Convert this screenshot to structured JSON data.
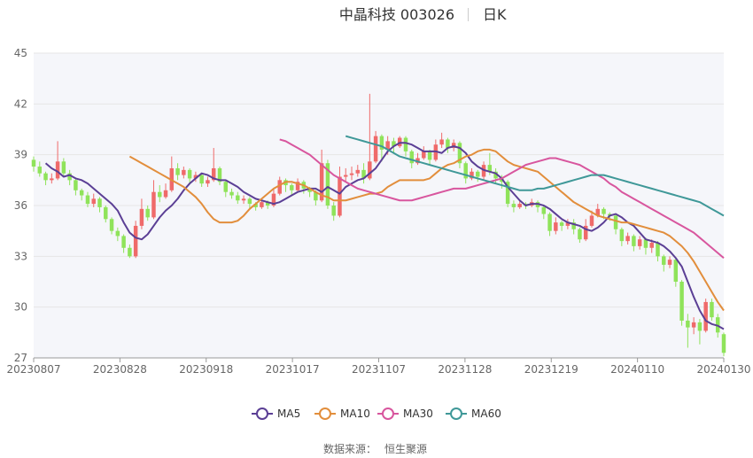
{
  "header": {
    "stock": "中晶科技 003026",
    "period": "日K"
  },
  "source": {
    "label": "数据来源：",
    "value": "恒生聚源"
  },
  "colors": {
    "up": "#ef6a6a",
    "down": "#8fe35a",
    "MA5": "#5b3f95",
    "MA10": "#e28e3c",
    "MA30": "#d8569e",
    "MA60": "#3f9898",
    "grid": "#e6e6e6",
    "plot_bg": "#f5f6fa"
  },
  "chart_data": {
    "type": "candlestick",
    "ylim": [
      27,
      45
    ],
    "y_ticks": [
      "45",
      "42",
      "39",
      "36",
      "33",
      "30",
      "27"
    ],
    "x_ticks": [
      "20230807",
      "20230828",
      "20230918",
      "20231017",
      "20231107",
      "20231128",
      "20231219",
      "20240110",
      "20240130"
    ],
    "grid": true,
    "legend": {
      "placement": "bottom",
      "items": [
        "MA5",
        "MA10",
        "MA30",
        "MA60"
      ]
    },
    "candles": [
      [
        38.7,
        38.3,
        38.9,
        38.0
      ],
      [
        38.3,
        37.9,
        38.6,
        37.7
      ],
      [
        37.9,
        37.5,
        38.0,
        37.2
      ],
      [
        37.5,
        37.6,
        37.9,
        37.3
      ],
      [
        37.6,
        38.6,
        39.8,
        37.5
      ],
      [
        38.6,
        37.9,
        38.8,
        37.7
      ],
      [
        37.9,
        37.5,
        38.1,
        37.2
      ],
      [
        37.5,
        36.9,
        37.6,
        36.6
      ],
      [
        36.9,
        36.6,
        37.0,
        36.3
      ],
      [
        36.6,
        36.1,
        36.8,
        35.9
      ],
      [
        36.1,
        36.4,
        36.7,
        35.9
      ],
      [
        36.4,
        35.9,
        36.5,
        35.6
      ],
      [
        35.9,
        35.2,
        36.0,
        35.0
      ],
      [
        35.2,
        34.5,
        35.3,
        34.3
      ],
      [
        34.5,
        34.2,
        34.7,
        33.9
      ],
      [
        34.2,
        33.5,
        34.3,
        33.2
      ],
      [
        33.5,
        33.0,
        33.7,
        32.9
      ],
      [
        33.0,
        34.8,
        35.1,
        32.9
      ],
      [
        34.8,
        35.8,
        36.4,
        34.6
      ],
      [
        35.8,
        35.3,
        36.0,
        35.1
      ],
      [
        35.3,
        36.8,
        37.5,
        35.2
      ],
      [
        36.8,
        36.5,
        37.2,
        36.2
      ],
      [
        36.5,
        36.9,
        37.3,
        36.4
      ],
      [
        36.9,
        38.2,
        38.9,
        36.8
      ],
      [
        38.2,
        37.8,
        38.5,
        37.5
      ],
      [
        37.8,
        38.1,
        38.3,
        37.6
      ],
      [
        38.1,
        37.6,
        38.2,
        37.3
      ],
      [
        37.6,
        37.8,
        38.0,
        37.4
      ],
      [
        37.8,
        37.3,
        37.9,
        37.1
      ],
      [
        37.3,
        37.5,
        37.7,
        37.1
      ],
      [
        37.5,
        38.2,
        39.4,
        37.4
      ],
      [
        38.2,
        37.4,
        38.3,
        37.2
      ],
      [
        37.4,
        36.8,
        37.5,
        36.5
      ],
      [
        36.8,
        36.6,
        37.0,
        36.4
      ],
      [
        36.6,
        36.3,
        36.8,
        36.1
      ],
      [
        36.3,
        36.4,
        36.6,
        36.1
      ],
      [
        36.4,
        36.1,
        36.5,
        35.8
      ],
      [
        36.1,
        35.9,
        36.2,
        35.7
      ],
      [
        35.9,
        36.2,
        36.4,
        35.8
      ],
      [
        36.2,
        36.0,
        36.3,
        35.8
      ],
      [
        36.0,
        36.7,
        37.0,
        35.9
      ],
      [
        36.7,
        37.5,
        37.7,
        36.6
      ],
      [
        37.5,
        37.2,
        37.6,
        36.8
      ],
      [
        37.2,
        36.9,
        37.3,
        36.6
      ],
      [
        36.9,
        37.4,
        37.6,
        36.8
      ],
      [
        37.4,
        37.0,
        37.5,
        36.7
      ],
      [
        37.0,
        36.8,
        37.1,
        36.5
      ],
      [
        36.8,
        36.3,
        36.9,
        36.0
      ],
      [
        36.3,
        38.5,
        39.3,
        36.2
      ],
      [
        38.5,
        36.0,
        38.7,
        35.8
      ],
      [
        36.0,
        35.4,
        36.2,
        35.1
      ],
      [
        35.4,
        37.7,
        38.3,
        35.3
      ],
      [
        37.7,
        37.8,
        38.2,
        37.4
      ],
      [
        37.8,
        37.9,
        38.3,
        37.5
      ],
      [
        37.9,
        38.1,
        38.4,
        37.7
      ],
      [
        38.1,
        37.6,
        38.5,
        37.3
      ],
      [
        37.6,
        38.6,
        42.6,
        37.5
      ],
      [
        38.6,
        40.1,
        40.4,
        38.5
      ],
      [
        40.1,
        39.3,
        40.2,
        38.6
      ],
      [
        39.3,
        39.8,
        40.1,
        39.0
      ],
      [
        39.8,
        39.5,
        40.0,
        39.1
      ],
      [
        39.5,
        40.0,
        40.1,
        39.4
      ],
      [
        40.0,
        39.2,
        40.1,
        38.9
      ],
      [
        39.2,
        38.5,
        39.3,
        38.2
      ],
      [
        38.5,
        38.8,
        39.1,
        38.4
      ],
      [
        38.8,
        39.2,
        39.5,
        38.7
      ],
      [
        39.2,
        38.7,
        39.3,
        38.4
      ],
      [
        38.7,
        39.6,
        39.9,
        38.6
      ],
      [
        39.6,
        39.9,
        40.3,
        39.4
      ],
      [
        39.9,
        39.4,
        40.0,
        39.1
      ],
      [
        39.4,
        39.7,
        39.9,
        39.2
      ],
      [
        39.7,
        38.5,
        39.8,
        38.2
      ],
      [
        38.5,
        37.6,
        38.6,
        37.3
      ],
      [
        37.6,
        38.0,
        38.2,
        37.5
      ],
      [
        38.0,
        37.7,
        38.1,
        37.4
      ],
      [
        37.7,
        38.4,
        38.6,
        37.5
      ],
      [
        38.4,
        38.0,
        39.1,
        37.8
      ],
      [
        38.0,
        37.6,
        38.2,
        37.3
      ],
      [
        37.6,
        37.4,
        37.8,
        37.0
      ],
      [
        37.4,
        36.1,
        37.5,
        35.9
      ],
      [
        36.1,
        35.9,
        36.3,
        35.6
      ],
      [
        35.9,
        36.1,
        36.3,
        35.8
      ],
      [
        36.1,
        36.0,
        36.2,
        35.8
      ],
      [
        36.0,
        36.2,
        36.4,
        35.9
      ],
      [
        36.2,
        35.9,
        36.3,
        35.6
      ],
      [
        35.9,
        35.5,
        36.0,
        35.2
      ],
      [
        35.5,
        34.5,
        35.6,
        34.2
      ],
      [
        34.5,
        35.0,
        35.3,
        34.3
      ],
      [
        35.0,
        34.8,
        35.1,
        34.5
      ],
      [
        34.8,
        35.0,
        35.2,
        34.6
      ],
      [
        35.0,
        34.6,
        35.2,
        34.3
      ],
      [
        34.6,
        34.0,
        34.7,
        33.8
      ],
      [
        34.0,
        34.8,
        35.2,
        33.9
      ],
      [
        34.8,
        35.4,
        35.7,
        34.7
      ],
      [
        35.4,
        35.8,
        36.1,
        35.3
      ],
      [
        35.8,
        35.5,
        35.9,
        35.2
      ],
      [
        35.5,
        35.4,
        35.6,
        35.1
      ],
      [
        35.4,
        34.6,
        35.5,
        34.3
      ],
      [
        34.6,
        33.9,
        34.7,
        33.6
      ],
      [
        33.9,
        34.2,
        34.4,
        33.7
      ],
      [
        34.2,
        33.6,
        34.3,
        33.3
      ],
      [
        33.6,
        34.0,
        34.2,
        33.4
      ],
      [
        34.0,
        33.5,
        34.1,
        33.1
      ],
      [
        33.5,
        33.8,
        34.0,
        33.2
      ],
      [
        33.8,
        33.0,
        33.9,
        32.7
      ],
      [
        33.0,
        32.5,
        33.1,
        32.1
      ],
      [
        32.5,
        32.8,
        33.0,
        32.3
      ],
      [
        32.8,
        31.5,
        32.9,
        31.2
      ],
      [
        31.5,
        29.2,
        31.6,
        28.9
      ],
      [
        29.2,
        28.8,
        29.6,
        27.6
      ],
      [
        28.8,
        29.1,
        29.4,
        28.4
      ],
      [
        29.1,
        28.6,
        29.3,
        27.8
      ],
      [
        28.6,
        30.3,
        30.5,
        28.5
      ],
      [
        30.3,
        29.4,
        30.5,
        29.2
      ],
      [
        29.4,
        28.5,
        29.6,
        28.2
      ],
      [
        28.4,
        27.3,
        28.5,
        27.1
      ]
    ],
    "series": [
      {
        "name": "MA5",
        "values": [
          38.5,
          38.2,
          38.0,
          37.7,
          37.8,
          37.6,
          37.5,
          37.3,
          37.0,
          36.7,
          36.4,
          36.1,
          35.7,
          35.0,
          34.4,
          34.1,
          34.0,
          34.3,
          34.8,
          35.3,
          35.7,
          36.0,
          36.4,
          36.9,
          37.3,
          37.6,
          37.9,
          37.8,
          37.6,
          37.5,
          37.5,
          37.3,
          37.1,
          36.8,
          36.6,
          36.4,
          36.3,
          36.2,
          36.1,
          36.2,
          36.4,
          36.6,
          36.8,
          36.9,
          37.0,
          37.0,
          36.8,
          37.1,
          36.9,
          36.7,
          37.1,
          37.3,
          37.5,
          37.6,
          37.9,
          38.2,
          38.7,
          39.2,
          39.5,
          39.7,
          39.7,
          39.6,
          39.4,
          39.2,
          39.2,
          39.2,
          39.1,
          39.4,
          39.5,
          39.4,
          39.1,
          38.6,
          38.3,
          38.1,
          38.0,
          37.9,
          37.6,
          37.1,
          36.7,
          36.3,
          36.0,
          36.1,
          36.1,
          36.0,
          35.8,
          35.5,
          35.2,
          35.0,
          34.9,
          34.8,
          34.6,
          34.5,
          34.7,
          35.0,
          35.4,
          35.5,
          35.3,
          35.0,
          34.8,
          34.4,
          34.0,
          33.9,
          33.8,
          33.6,
          33.3,
          32.9,
          32.4,
          31.5,
          30.6,
          29.8,
          29.2,
          29.0,
          28.9,
          28.7
        ]
      },
      {
        "name": "MA10",
        "values": [
          38.9,
          38.7,
          38.5,
          38.3,
          38.1,
          37.9,
          37.7,
          37.5,
          37.3,
          37.1,
          36.8,
          36.5,
          36.1,
          35.6,
          35.2,
          35.0,
          35.0,
          35.0,
          35.1,
          35.4,
          35.8,
          36.1,
          36.4,
          36.7,
          37.0,
          37.2,
          37.4,
          37.4,
          37.3,
          37.2,
          37.0,
          36.8,
          36.6,
          36.5,
          36.3,
          36.3,
          36.3,
          36.4,
          36.5,
          36.6,
          36.7,
          36.7,
          36.8,
          37.1,
          37.3,
          37.5,
          37.5,
          37.5,
          37.5,
          37.5,
          37.6,
          37.9,
          38.2,
          38.4,
          38.5,
          38.7,
          38.9,
          39.0,
          39.2,
          39.3,
          39.3,
          39.2,
          38.9,
          38.6,
          38.4,
          38.3,
          38.2,
          38.1,
          38.0,
          37.7,
          37.4,
          37.1,
          36.8,
          36.5,
          36.2,
          36.0,
          35.8,
          35.6,
          35.4,
          35.3,
          35.2,
          35.1,
          35.0,
          35.0,
          34.9,
          34.8,
          34.7,
          34.6,
          34.5,
          34.4,
          34.2,
          33.9,
          33.6,
          33.2,
          32.7,
          32.1,
          31.5,
          30.9,
          30.3,
          29.8
        ]
      },
      {
        "name": "MA30",
        "values": [
          39.9,
          39.8,
          39.6,
          39.4,
          39.2,
          39.0,
          38.7,
          38.4,
          38.1,
          37.8,
          37.6,
          37.4,
          37.2,
          37.0,
          36.9,
          36.8,
          36.7,
          36.6,
          36.5,
          36.4,
          36.3,
          36.3,
          36.3,
          36.4,
          36.5,
          36.6,
          36.7,
          36.8,
          36.9,
          37.0,
          37.0,
          37.0,
          37.1,
          37.2,
          37.3,
          37.4,
          37.5,
          37.6,
          37.8,
          38.0,
          38.2,
          38.4,
          38.5,
          38.6,
          38.7,
          38.8,
          38.8,
          38.7,
          38.6,
          38.5,
          38.4,
          38.2,
          38.0,
          37.8,
          37.6,
          37.3,
          37.1,
          36.8,
          36.6,
          36.4,
          36.2,
          36.0,
          35.8,
          35.6,
          35.4,
          35.2,
          35.0,
          34.8,
          34.6,
          34.4,
          34.1,
          33.8,
          33.5,
          33.2,
          32.9
        ]
      },
      {
        "name": "MA60",
        "values": [
          40.1,
          40.0,
          39.9,
          39.8,
          39.7,
          39.6,
          39.5,
          39.3,
          39.1,
          38.9,
          38.8,
          38.7,
          38.6,
          38.5,
          38.4,
          38.3,
          38.2,
          38.1,
          38.0,
          37.9,
          37.8,
          37.7,
          37.6,
          37.5,
          37.4,
          37.3,
          37.2,
          37.1,
          37.0,
          36.9,
          36.9,
          36.9,
          37.0,
          37.0,
          37.1,
          37.2,
          37.3,
          37.4,
          37.5,
          37.6,
          37.7,
          37.8,
          37.8,
          37.8,
          37.7,
          37.6,
          37.5,
          37.4,
          37.3,
          37.2,
          37.1,
          37.0,
          36.9,
          36.8,
          36.7,
          36.6,
          36.5,
          36.4,
          36.3,
          36.2,
          36.0,
          35.8,
          35.6,
          35.4
        ]
      }
    ]
  }
}
